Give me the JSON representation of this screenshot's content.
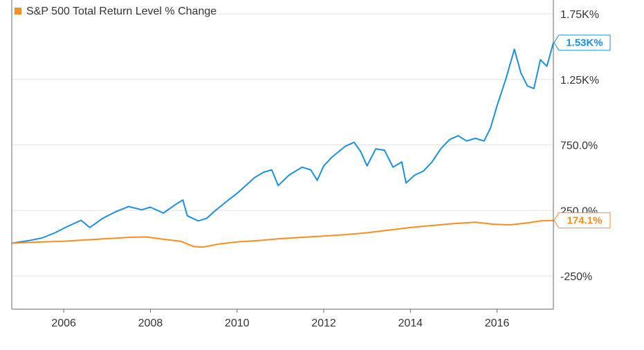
{
  "chart_data": {
    "type": "line",
    "x_range": [
      2004.8,
      2017.3
    ],
    "y_range": [
      -500,
      2000
    ],
    "xticks": [
      {
        "value": 2006,
        "label": "2006"
      },
      {
        "value": 2008,
        "label": "2008"
      },
      {
        "value": 2010,
        "label": "2010"
      },
      {
        "value": 2012,
        "label": "2012"
      },
      {
        "value": 2014,
        "label": "2014"
      },
      {
        "value": 2016,
        "label": "2016"
      }
    ],
    "yticks": [
      {
        "value": 1750,
        "label": "1.75K%"
      },
      {
        "value": 1250,
        "label": "1.25K%"
      },
      {
        "value": 750,
        "label": "750.0%"
      },
      {
        "value": 250,
        "label": "250.0%"
      },
      {
        "value": -250,
        "label": "-250%"
      }
    ],
    "grid": "horizontal",
    "legend_position": "top-left",
    "series": [
      {
        "name": "",
        "color": "#1a8fe0",
        "end_label": "1.53K%",
        "points": [
          [
            2004.8,
            0
          ],
          [
            2005.2,
            20
          ],
          [
            2005.5,
            40
          ],
          [
            2005.8,
            80
          ],
          [
            2006.1,
            130
          ],
          [
            2006.4,
            175
          ],
          [
            2006.6,
            120
          ],
          [
            2006.9,
            190
          ],
          [
            2007.2,
            240
          ],
          [
            2007.5,
            280
          ],
          [
            2007.8,
            255
          ],
          [
            2008.0,
            275
          ],
          [
            2008.3,
            230
          ],
          [
            2008.6,
            300
          ],
          [
            2008.75,
            330
          ],
          [
            2008.85,
            210
          ],
          [
            2009.1,
            170
          ],
          [
            2009.3,
            190
          ],
          [
            2009.5,
            250
          ],
          [
            2009.8,
            330
          ],
          [
            2010.0,
            380
          ],
          [
            2010.2,
            440
          ],
          [
            2010.4,
            500
          ],
          [
            2010.6,
            540
          ],
          [
            2010.8,
            560
          ],
          [
            2010.95,
            440
          ],
          [
            2011.2,
            520
          ],
          [
            2011.5,
            580
          ],
          [
            2011.7,
            560
          ],
          [
            2011.85,
            480
          ],
          [
            2012.0,
            590
          ],
          [
            2012.2,
            660
          ],
          [
            2012.5,
            740
          ],
          [
            2012.7,
            770
          ],
          [
            2012.85,
            700
          ],
          [
            2013.0,
            590
          ],
          [
            2013.2,
            720
          ],
          [
            2013.4,
            710
          ],
          [
            2013.6,
            580
          ],
          [
            2013.8,
            620
          ],
          [
            2013.9,
            460
          ],
          [
            2014.1,
            520
          ],
          [
            2014.3,
            550
          ],
          [
            2014.5,
            620
          ],
          [
            2014.7,
            720
          ],
          [
            2014.9,
            790
          ],
          [
            2015.1,
            820
          ],
          [
            2015.3,
            780
          ],
          [
            2015.5,
            800
          ],
          [
            2015.7,
            780
          ],
          [
            2015.85,
            880
          ],
          [
            2016.0,
            1050
          ],
          [
            2016.2,
            1250
          ],
          [
            2016.4,
            1480
          ],
          [
            2016.55,
            1300
          ],
          [
            2016.7,
            1200
          ],
          [
            2016.85,
            1180
          ],
          [
            2017.0,
            1400
          ],
          [
            2017.15,
            1350
          ],
          [
            2017.3,
            1530
          ]
        ]
      },
      {
        "name": "S&P 500 Total Return Level % Change",
        "color": "#f98d1e",
        "end_label": "174.1%",
        "points": [
          [
            2004.8,
            0
          ],
          [
            2005.5,
            10
          ],
          [
            2006.0,
            15
          ],
          [
            2006.5,
            25
          ],
          [
            2007.0,
            35
          ],
          [
            2007.5,
            45
          ],
          [
            2007.9,
            48
          ],
          [
            2008.3,
            30
          ],
          [
            2008.7,
            15
          ],
          [
            2009.0,
            -25
          ],
          [
            2009.2,
            -30
          ],
          [
            2009.6,
            -5
          ],
          [
            2010.0,
            10
          ],
          [
            2010.5,
            20
          ],
          [
            2011.0,
            35
          ],
          [
            2011.5,
            45
          ],
          [
            2012.0,
            55
          ],
          [
            2012.5,
            65
          ],
          [
            2013.0,
            80
          ],
          [
            2013.5,
            100
          ],
          [
            2014.0,
            120
          ],
          [
            2014.5,
            135
          ],
          [
            2015.0,
            150
          ],
          [
            2015.5,
            160
          ],
          [
            2015.9,
            145
          ],
          [
            2016.3,
            140
          ],
          [
            2016.7,
            155
          ],
          [
            2017.0,
            170
          ],
          [
            2017.3,
            174.1
          ]
        ]
      }
    ]
  }
}
